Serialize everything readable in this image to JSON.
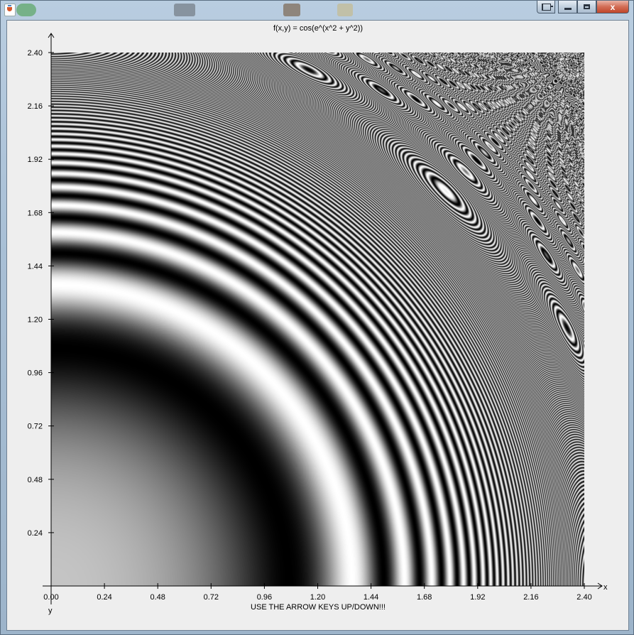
{
  "window": {
    "controls": {
      "pin_icon": "pin-window-icon",
      "minimize_icon": "minimize-icon",
      "maximize_icon": "maximize-icon",
      "close_icon": "close-icon",
      "close_glyph": "x"
    }
  },
  "plot": {
    "title": "f(x,y) = cos(e^(x^2 + y^2))",
    "hint": "USE THE ARROW KEYS UP/DOWN!!!",
    "xlabel": "x",
    "ylabel": "y"
  },
  "chart_data": {
    "type": "heatmap",
    "title": "f(x,y) = cos(e^(x^2 + y^2))",
    "function": "cos(e^(x^2 + y^2))",
    "colormap": "grayscale",
    "xlabel": "x",
    "ylabel": "y",
    "xlim": [
      0,
      2.4
    ],
    "ylim": [
      0,
      2.4
    ],
    "x_ticks": [
      "0.00",
      "0.24",
      "0.48",
      "0.72",
      "0.96",
      "1.20",
      "1.44",
      "1.68",
      "1.92",
      "2.16",
      "2.40"
    ],
    "y_ticks": [
      "0.24",
      "0.48",
      "0.72",
      "0.96",
      "1.20",
      "1.44",
      "1.68",
      "1.92",
      "2.16",
      "2.40"
    ],
    "grid": false,
    "legend": "none"
  }
}
